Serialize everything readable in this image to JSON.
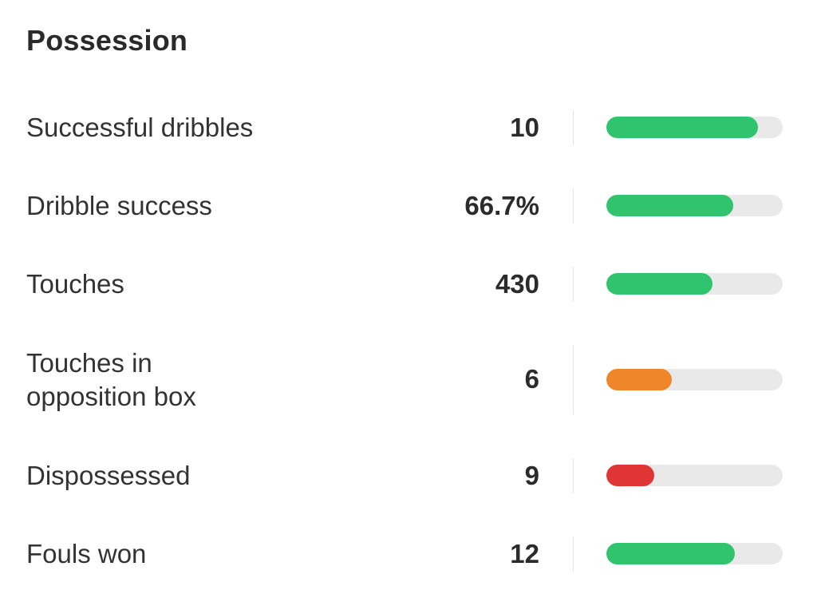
{
  "section": {
    "title": "Possession"
  },
  "stats": [
    {
      "label": "Successful dribbles",
      "value": "10",
      "bar_fraction": 0.86,
      "bar_color": "#2fc46d"
    },
    {
      "label": "Dribble success",
      "value": "66.7%",
      "bar_fraction": 0.72,
      "bar_color": "#2fc46d"
    },
    {
      "label": "Touches",
      "value": "430",
      "bar_fraction": 0.6,
      "bar_color": "#2fc46d"
    },
    {
      "label": "Touches in\nopposition box",
      "value": "6",
      "bar_fraction": 0.37,
      "bar_color": "#f0862a"
    },
    {
      "label": "Dispossessed",
      "value": "9",
      "bar_fraction": 0.27,
      "bar_color": "#e03535"
    },
    {
      "label": "Fouls won",
      "value": "12",
      "bar_fraction": 0.73,
      "bar_color": "#2fc46d"
    }
  ]
}
